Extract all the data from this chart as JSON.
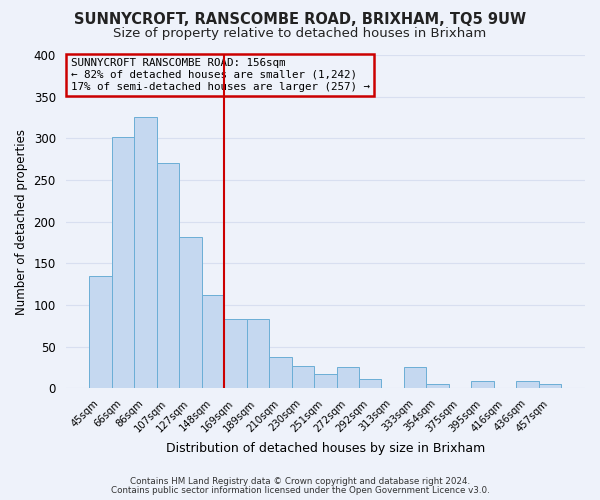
{
  "title1": "SUNNYCROFT, RANSCOMBE ROAD, BRIXHAM, TQ5 9UW",
  "title2": "Size of property relative to detached houses in Brixham",
  "xlabel": "Distribution of detached houses by size in Brixham",
  "ylabel": "Number of detached properties",
  "bin_labels": [
    "45sqm",
    "66sqm",
    "86sqm",
    "107sqm",
    "127sqm",
    "148sqm",
    "169sqm",
    "189sqm",
    "210sqm",
    "230sqm",
    "251sqm",
    "272sqm",
    "292sqm",
    "313sqm",
    "333sqm",
    "354sqm",
    "375sqm",
    "395sqm",
    "416sqm",
    "436sqm",
    "457sqm"
  ],
  "bar_heights": [
    135,
    302,
    325,
    270,
    182,
    112,
    83,
    83,
    37,
    27,
    17,
    25,
    11,
    0,
    25,
    5,
    0,
    9,
    0,
    9,
    5
  ],
  "bar_color": "#c5d8f0",
  "bar_edge_color": "#6baed6",
  "vline_x": 5.5,
  "vline_color": "#cc0000",
  "annotation_title": "SUNNYCROFT RANSCOMBE ROAD: 156sqm",
  "annotation_line1": "← 82% of detached houses are smaller (1,242)",
  "annotation_line2": "17% of semi-detached houses are larger (257) →",
  "annotation_box_color": "#cc0000",
  "footnote1": "Contains HM Land Registry data © Crown copyright and database right 2024.",
  "footnote2": "Contains public sector information licensed under the Open Government Licence v3.0.",
  "ylim": [
    0,
    400
  ],
  "yticks": [
    0,
    50,
    100,
    150,
    200,
    250,
    300,
    350,
    400
  ],
  "background_color": "#eef2fa",
  "grid_color": "#d8dff0",
  "title1_fontsize": 10.5,
  "title2_fontsize": 9.5,
  "footnote_color": "#333333"
}
